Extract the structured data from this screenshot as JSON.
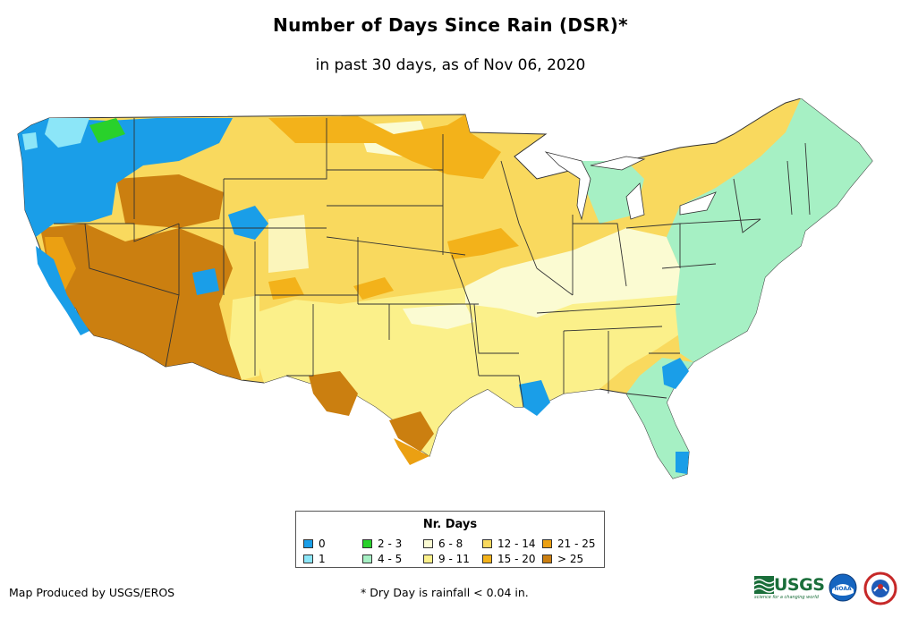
{
  "title": "Number of Days Since Rain (DSR)*",
  "subtitle": "in past 30 days, as of Nov 06, 2020",
  "legend": {
    "title": "Nr. Days",
    "items": [
      {
        "label": "0",
        "color": "#1a9ee8"
      },
      {
        "label": "1",
        "color": "#8ce6f8"
      },
      {
        "label": "2 - 3",
        "color": "#29d12b"
      },
      {
        "label": "4 - 5",
        "color": "#a6f0c4"
      },
      {
        "label": "6 - 8",
        "color": "#fbfbd2"
      },
      {
        "label": "9 - 11",
        "color": "#fbf08a"
      },
      {
        "label": "12 - 14",
        "color": "#f9d95e"
      },
      {
        "label": "15 - 20",
        "color": "#f3b21a"
      },
      {
        "label": "21 - 25",
        "color": "#eba012"
      },
      {
        "label": "> 25",
        "color": "#cb7f10"
      }
    ]
  },
  "credit": "Map Produced by USGS/EROS",
  "footnote": "* Dry Day is rainfall < 0.04 in.",
  "logos": {
    "usgs": "USGS",
    "usgs_tagline": "science for a changing world",
    "noaa": "NOAA"
  }
}
